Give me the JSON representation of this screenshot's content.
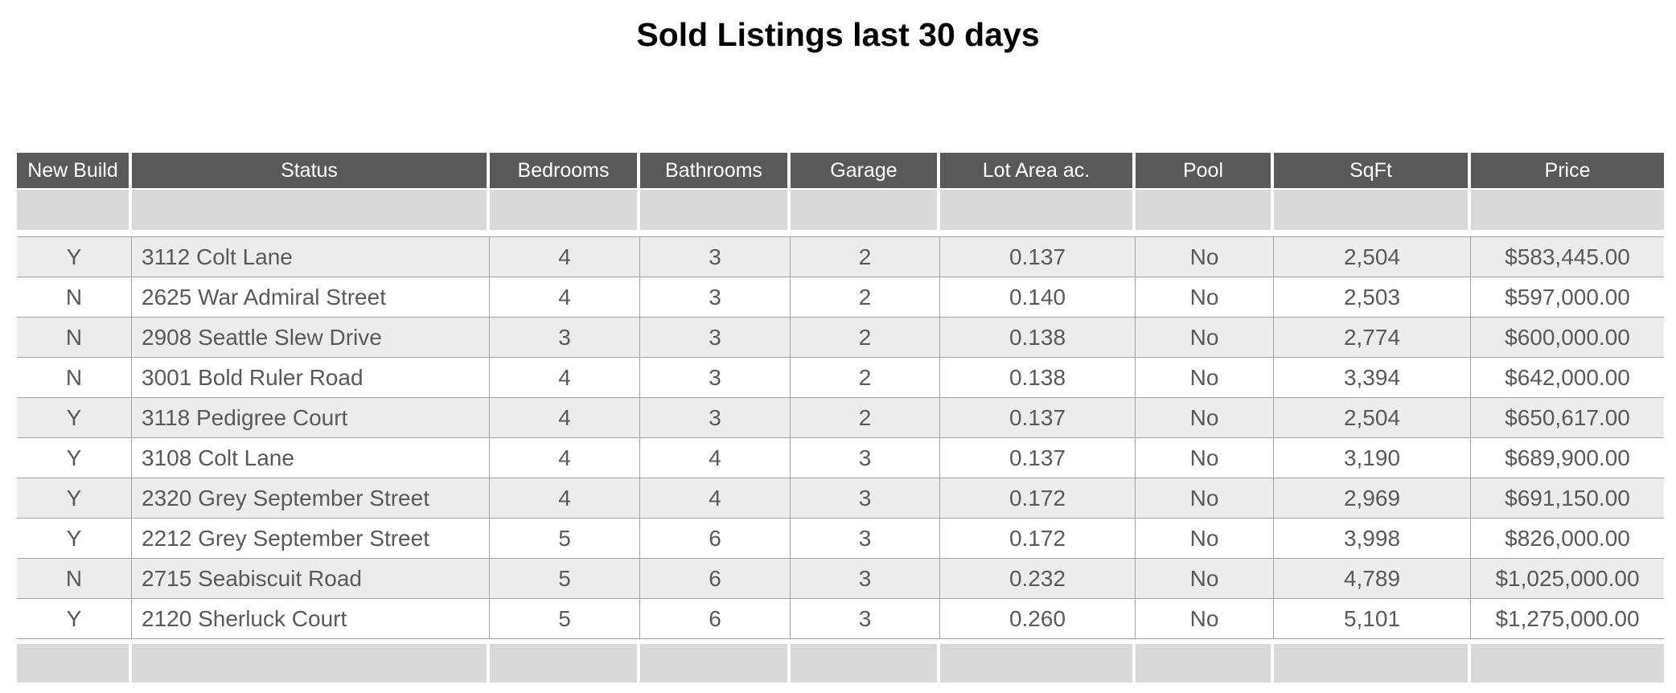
{
  "title": "Sold Listings last 30 days",
  "colors": {
    "header_bg": "#595959",
    "header_text": "#ffffff",
    "spacer_band_bg": "#d9d9d9",
    "odd_row_bg": "#ececec",
    "even_row_bg": "#ffffff",
    "data_text": "#595959",
    "grid_line": "#a3a3a3"
  },
  "table": {
    "headers": [
      "New Build",
      "Status",
      "Bedrooms",
      "Bathrooms",
      "Garage",
      "Lot Area ac.",
      "Pool",
      "SqFt",
      "Price"
    ],
    "rows": [
      [
        "Y",
        "3112 Colt Lane",
        "4",
        "3",
        "2",
        "0.137",
        "No",
        "2,504",
        "$583,445.00"
      ],
      [
        "N",
        "2625 War Admiral Street",
        "4",
        "3",
        "2",
        "0.140",
        "No",
        "2,503",
        "$597,000.00"
      ],
      [
        "N",
        "2908 Seattle Slew Drive",
        "3",
        "3",
        "2",
        "0.138",
        "No",
        "2,774",
        "$600,000.00"
      ],
      [
        "N",
        "3001 Bold Ruler Road",
        "4",
        "3",
        "2",
        "0.138",
        "No",
        "3,394",
        "$642,000.00"
      ],
      [
        "Y",
        "3118 Pedigree Court",
        "4",
        "3",
        "2",
        "0.137",
        "No",
        "2,504",
        "$650,617.00"
      ],
      [
        "Y",
        "3108 Colt Lane",
        "4",
        "4",
        "3",
        "0.137",
        "No",
        "3,190",
        "$689,900.00"
      ],
      [
        "Y",
        "2320 Grey September Street",
        "4",
        "4",
        "3",
        "0.172",
        "No",
        "2,969",
        "$691,150.00"
      ],
      [
        "Y",
        "2212 Grey September Street",
        "5",
        "6",
        "3",
        "0.172",
        "No",
        "3,998",
        "$826,000.00"
      ],
      [
        "N",
        "2715 Seabiscuit Road",
        "5",
        "6",
        "3",
        "0.232",
        "No",
        "4,789",
        "$1,025,000.00"
      ],
      [
        "Y",
        "2120 Sherluck Court",
        "5",
        "6",
        "3",
        "0.260",
        "No",
        "5,101",
        "$1,275,000.00"
      ]
    ]
  }
}
